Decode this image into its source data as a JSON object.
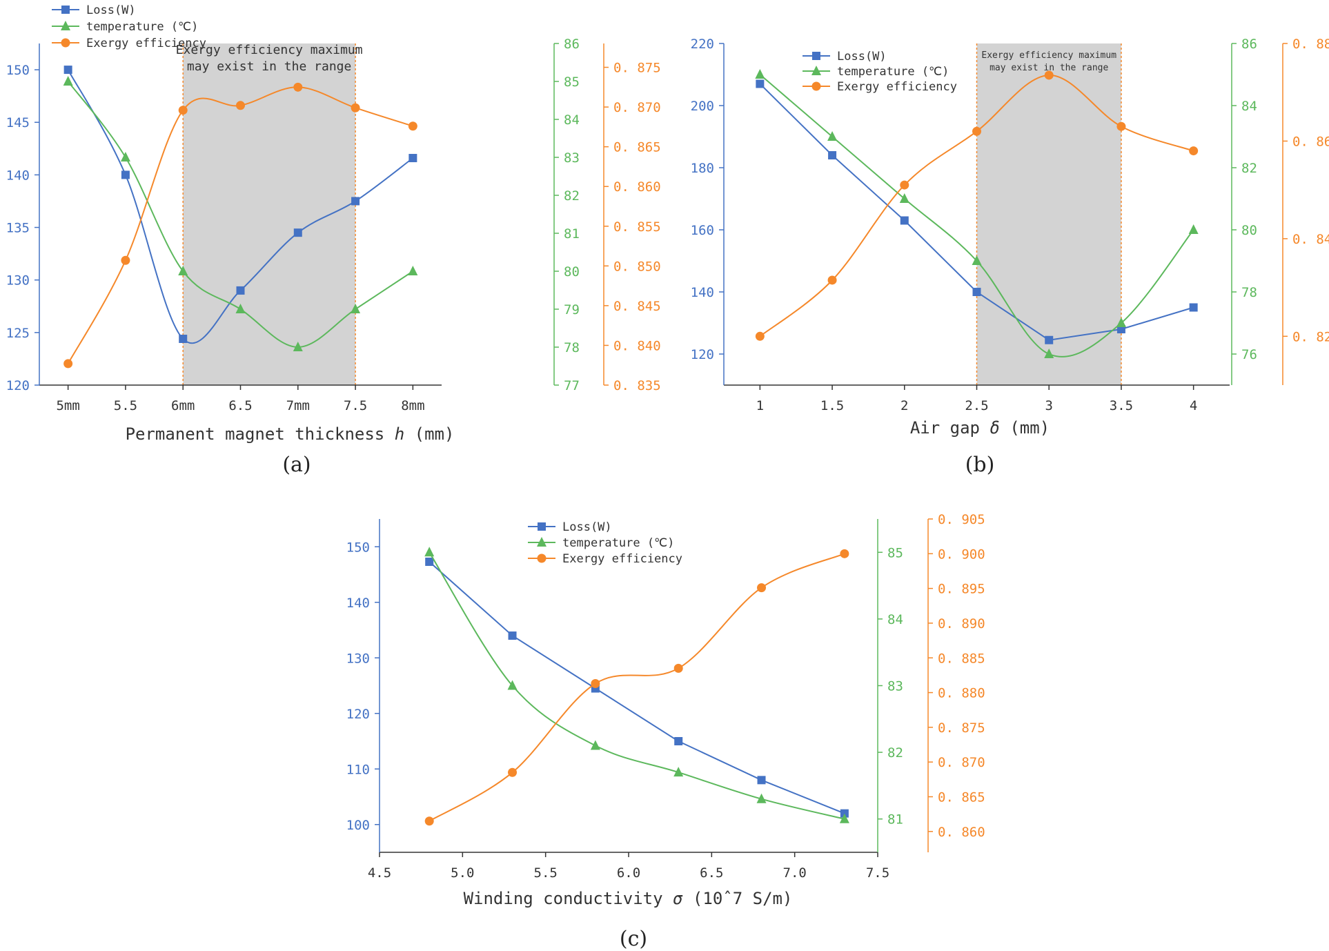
{
  "colors": {
    "loss": "#4472C4",
    "temperature": "#5CB85C",
    "exergy": "#F5882A",
    "shade": "#D3D3D3",
    "axis": "#333333"
  },
  "chart_data": [
    {
      "panel_label": "(a)",
      "type": "line",
      "xlabel": "Permanent magnet thickness",
      "xlabel_var": "h",
      "xlabel_unit": "(mm)",
      "categories": [
        "5mm",
        "5.5",
        "6mm",
        "6.5",
        "7mm",
        "7.5",
        "8mm"
      ],
      "x": [
        5,
        5.5,
        6,
        6.5,
        7,
        7.5,
        8
      ],
      "xlim": [
        4.75,
        8.25
      ],
      "shade_range": [
        6,
        7.5
      ],
      "annotation": [
        "Exergy efficiency maximum",
        "may exist in the range"
      ],
      "legend": [
        "Loss(W)",
        "temperature  (℃)",
        "Exergy efficiency"
      ],
      "axes": {
        "loss": {
          "lim": [
            120,
            152.5
          ],
          "ticks": [
            "120",
            "125",
            "130",
            "135",
            "140",
            "145",
            "150"
          ]
        },
        "temperature": {
          "lim": [
            77,
            86
          ],
          "ticks": [
            "77",
            "78",
            "79",
            "80",
            "81",
            "82",
            "83",
            "84",
            "85",
            "86"
          ]
        },
        "exergy": {
          "lim": [
            0.835,
            0.878
          ],
          "ticks": [
            "0.835",
            "0.840",
            "0.845",
            "0.850",
            "0.855",
            "0.860",
            "0.865",
            "0.870",
            "0.875"
          ]
        }
      },
      "series": [
        {
          "name": "Loss(W)",
          "axis": "loss",
          "marker": "square",
          "values": [
            150.0,
            140.0,
            124.4,
            129.0,
            134.5,
            137.5,
            141.6
          ]
        },
        {
          "name": "temperature (℃)",
          "axis": "temperature",
          "marker": "triangle",
          "values": [
            85.0,
            83.0,
            80.0,
            79.0,
            78.0,
            79.0,
            80.0
          ]
        },
        {
          "name": "Exergy efficiency",
          "axis": "exergy",
          "marker": "circle",
          "values": [
            0.8377,
            0.8507,
            0.8696,
            0.8702,
            0.8725,
            0.8699,
            0.8676
          ]
        }
      ]
    },
    {
      "panel_label": "(b)",
      "type": "line",
      "xlabel": "Air gap",
      "xlabel_var": "δ",
      "xlabel_unit": "(mm)",
      "categories": [
        "1",
        "1.5",
        "2",
        "2.5",
        "3",
        "3.5",
        "4"
      ],
      "x": [
        1,
        1.5,
        2,
        2.5,
        3,
        3.5,
        4
      ],
      "xlim": [
        0.75,
        4.25
      ],
      "shade_range": [
        2.5,
        3.5
      ],
      "annotation": [
        "Exergy efficiency maximum",
        "may exist in the range"
      ],
      "legend": [
        "Loss(W)",
        "temperature  (℃)",
        "Exergy efficiency"
      ],
      "axes": {
        "loss": {
          "lim": [
            110,
            220
          ],
          "ticks": [
            "120",
            "140",
            "160",
            "180",
            "200",
            "220"
          ]
        },
        "temperature": {
          "lim": [
            75,
            86
          ],
          "ticks": [
            "76",
            "78",
            "80",
            "82",
            "84",
            "86"
          ]
        },
        "exergy": {
          "lim": [
            0.81,
            0.88
          ],
          "ticks": [
            "0.82",
            "0.84",
            "0.86",
            "0.88"
          ]
        }
      },
      "series": [
        {
          "name": "Loss(W)",
          "axis": "loss",
          "marker": "square",
          "values": [
            207.0,
            184.0,
            163.0,
            140.0,
            124.5,
            128.0,
            135.0
          ]
        },
        {
          "name": "temperature (℃)",
          "axis": "temperature",
          "marker": "triangle",
          "values": [
            85.0,
            83.0,
            81.0,
            79.0,
            76.0,
            77.0,
            80.0
          ]
        },
        {
          "name": "Exergy efficiency",
          "axis": "exergy",
          "marker": "circle",
          "values": [
            0.82,
            0.8315,
            0.851,
            0.862,
            0.8735,
            0.863,
            0.858
          ]
        }
      ]
    },
    {
      "panel_label": "(c)",
      "type": "line",
      "xlabel": "Winding conductivity",
      "xlabel_var": "σ",
      "xlabel_unit": "(10ˆ7 S/m)",
      "categories": [
        "4.5",
        "5.0",
        "5.5",
        "6.0",
        "6.5",
        "7.0",
        "7.5"
      ],
      "x": [
        4.8,
        5.3,
        5.8,
        6.3,
        6.8,
        7.3
      ],
      "tick_values": [
        4.5,
        5.0,
        5.5,
        6.0,
        6.5,
        7.0,
        7.5
      ],
      "xlim": [
        4.5,
        7.5
      ],
      "legend": [
        "Loss(W)",
        "temperature  (℃)",
        "Exergy efficiency"
      ],
      "axes": {
        "loss": {
          "lim": [
            95,
            155
          ],
          "ticks": [
            "100",
            "110",
            "120",
            "130",
            "140",
            "150"
          ]
        },
        "temperature": {
          "lim": [
            80.5,
            85.5
          ],
          "ticks": [
            "81",
            "82",
            "83",
            "84",
            "85"
          ]
        },
        "exergy": {
          "lim": [
            0.857,
            0.905
          ],
          "ticks": [
            "0.860",
            "0.865",
            "0.870",
            "0.875",
            "0.880",
            "0.885",
            "0.890",
            "0.895",
            "0.900",
            "0.905"
          ]
        }
      },
      "series": [
        {
          "name": "Loss(W)",
          "axis": "loss",
          "marker": "square",
          "values": [
            147.3,
            134.0,
            124.5,
            115.0,
            108.0,
            102.0
          ]
        },
        {
          "name": "temperature (℃)",
          "axis": "temperature",
          "marker": "triangle",
          "values": [
            85.0,
            83.0,
            82.1,
            81.7,
            81.3,
            81.0
          ]
        },
        {
          "name": "Exergy efficiency",
          "axis": "exergy",
          "marker": "circle",
          "values": [
            0.8615,
            0.8685,
            0.8813,
            0.8835,
            0.8951,
            0.9
          ]
        }
      ]
    }
  ]
}
